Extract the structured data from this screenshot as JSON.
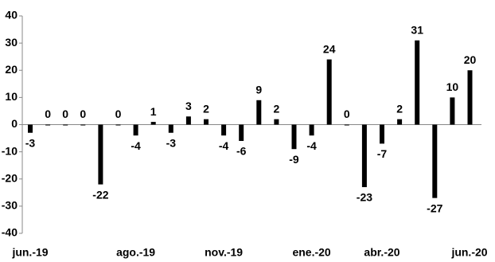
{
  "chart_data": {
    "type": "bar",
    "categories": [
      "jun.-19",
      null,
      null,
      null,
      null,
      null,
      "ago.-19",
      null,
      null,
      null,
      null,
      "nov.-19",
      null,
      null,
      null,
      null,
      "ene.-20",
      null,
      null,
      null,
      "abr.-20",
      null,
      null,
      null,
      null,
      "jun.-20"
    ],
    "values": [
      -3,
      0,
      0,
      0,
      -22,
      0,
      -4,
      1,
      -3,
      3,
      2,
      -4,
      -6,
      9,
      2,
      -9,
      -4,
      24,
      0,
      -23,
      -7,
      2,
      31,
      -27,
      10,
      20
    ],
    "color": "#000000",
    "ylim": [
      -40,
      40
    ],
    "yticks": [
      -40,
      -30,
      -20,
      -10,
      0,
      10,
      20,
      30,
      40
    ],
    "grid": false
  }
}
